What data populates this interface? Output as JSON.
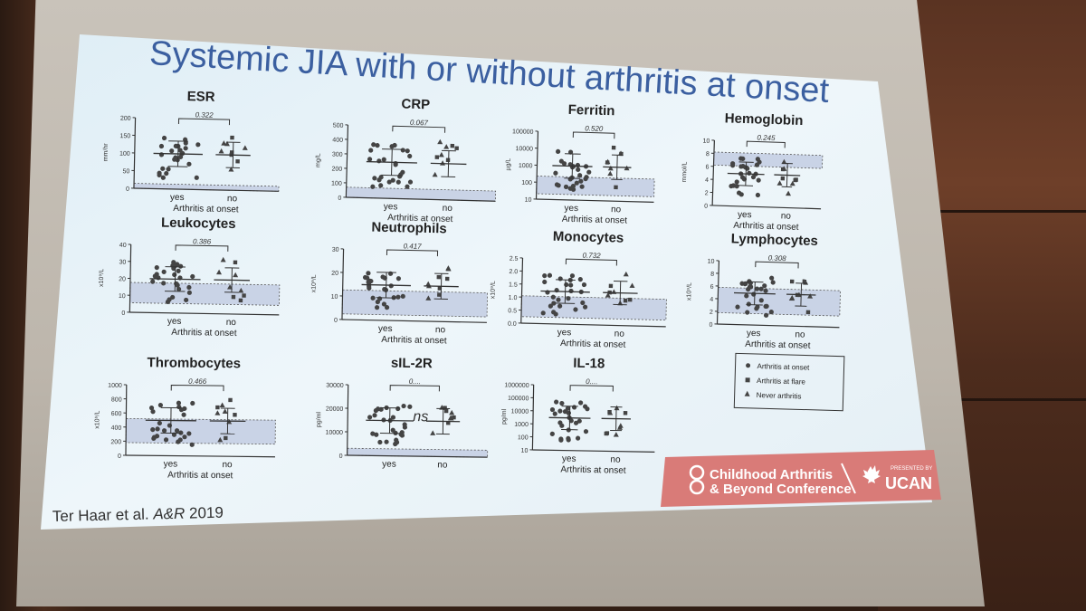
{
  "slide": {
    "title": "Systemic JIA with or without arthritis at onset",
    "citation_prefix": "Ter Haar et al. ",
    "citation_journal": "A&R",
    "citation_year": " 2019"
  },
  "panels": [
    {
      "name": "ESR",
      "unit": "mm/hr",
      "p": "0.322",
      "ticks": [
        "200",
        "150",
        "100",
        "50",
        "0"
      ],
      "x_yes": "yes",
      "x_no": "no",
      "axis_title": "Arthritis at onset"
    },
    {
      "name": "CRP",
      "unit": "mg/L",
      "p": "0.067",
      "ticks": [
        "500",
        "400",
        "300",
        "200",
        "100",
        "0"
      ],
      "x_yes": "yes",
      "x_no": "no",
      "axis_title": "Arthritis at onset"
    },
    {
      "name": "Ferritin",
      "unit": "µg/L",
      "p": "0.520",
      "ticks": [
        "100000",
        "10000",
        "1000",
        "100",
        "10"
      ],
      "x_yes": "yes",
      "x_no": "no",
      "axis_title": "Arthritis at onset"
    },
    {
      "name": "Hemoglobin",
      "unit": "mmol/L",
      "p": "0.245",
      "ticks": [
        "10",
        "8",
        "6",
        "4",
        "2",
        "0"
      ],
      "x_yes": "yes",
      "x_no": "no",
      "axis_title": "Arthritis at onset"
    },
    {
      "name": "Leukocytes",
      "unit": "x10⁹/L",
      "p": "0.386",
      "ticks": [
        "40",
        "30",
        "20",
        "10",
        "0"
      ],
      "x_yes": "yes",
      "x_no": "no",
      "axis_title": "Arthritis at onset"
    },
    {
      "name": "Neutrophils",
      "unit": "x10⁹/L",
      "p": "0.417",
      "ticks": [
        "30",
        "20",
        "10",
        "0"
      ],
      "x_yes": "yes",
      "x_no": "no",
      "axis_title": "Arthritis at onset"
    },
    {
      "name": "Monocytes",
      "unit": "x10⁹/L",
      "p": "0.732",
      "ticks": [
        "2.5",
        "2.0",
        "1.5",
        "1.0",
        "0.5",
        "0.0"
      ],
      "x_yes": "yes",
      "x_no": "no",
      "axis_title": "Arthritis at onset"
    },
    {
      "name": "Lymphocytes",
      "unit": "x10⁹/L",
      "p": "0.308",
      "ticks": [
        "10",
        "8",
        "6",
        "4",
        "2",
        "0"
      ],
      "x_yes": "yes",
      "x_no": "no",
      "axis_title": "Arthritis at onset"
    },
    {
      "name": "Thrombocytes",
      "unit": "x10⁹/L",
      "p": "0.466",
      "ticks": [
        "1000",
        "800",
        "600",
        "400",
        "200",
        "0"
      ],
      "x_yes": "yes",
      "x_no": "no",
      "axis_title": "Arthritis at onset"
    },
    {
      "name": "sIL-2R",
      "unit": "pg/ml",
      "p": "0....",
      "ticks": [
        "30000",
        "20000",
        "10000",
        "0"
      ],
      "x_yes": "yes",
      "x_no": "no",
      "axis_title": "",
      "annotation": "ns"
    },
    {
      "name": "IL-18",
      "unit": "pg/ml",
      "p": "0....",
      "ticks": [
        "1000000",
        "100000",
        "10000",
        "1000",
        "100",
        "10"
      ],
      "x_yes": "yes",
      "x_no": "no",
      "axis_title": "Arthritis at onset"
    }
  ],
  "legend": [
    {
      "marker": "circle",
      "label": "Arthritis at onset"
    },
    {
      "marker": "square",
      "label": "Arthritis at flare"
    },
    {
      "marker": "triangle",
      "label": "Never arthritis"
    }
  ],
  "banner": {
    "line1": "Childhood Arthritis",
    "line2": "& Beyond Conference",
    "presented_by": "PRESENTED BY",
    "brand": "UCAN",
    "color": "#d97b78"
  },
  "colors": {
    "slide_bg": "#e9f3f8",
    "title": "#3b5fa0",
    "dots": "#444444",
    "normal_band": "#c9d3e6"
  }
}
